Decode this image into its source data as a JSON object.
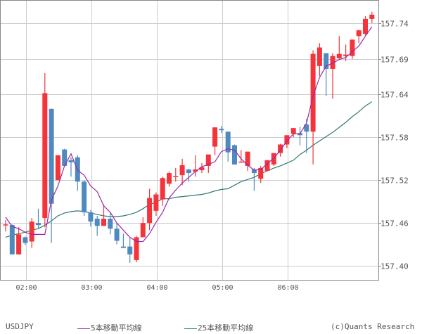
{
  "chart_data": {
    "type": "candlestick",
    "symbol": "USDJPY",
    "interval_minutes": 6,
    "y_ticks": [
      157.74,
      157.69,
      157.64,
      157.58,
      157.52,
      157.46,
      157.4
    ],
    "x_ticks": [
      "02:00",
      "03:00",
      "04:00",
      "05:00",
      "06:00"
    ],
    "ylim": [
      157.38,
      157.77
    ],
    "grid": true,
    "colors": {
      "up": "#f5333a",
      "down": "#4f8abf",
      "ma5": "#9b2aa8",
      "ma25": "#2e7a72",
      "grid": "#cccccc",
      "axis": "#888888"
    },
    "candles": [
      {
        "o": 157.458,
        "h": 157.464,
        "l": 157.448,
        "c": 157.458
      },
      {
        "o": 157.457,
        "h": 157.458,
        "l": 157.417,
        "c": 157.416
      },
      {
        "o": 157.416,
        "h": 157.454,
        "l": 157.416,
        "c": 157.444
      },
      {
        "o": 157.44,
        "h": 157.441,
        "l": 157.429,
        "c": 157.432
      },
      {
        "o": 157.434,
        "h": 157.467,
        "l": 157.425,
        "c": 157.462
      },
      {
        "o": 157.46,
        "h": 157.48,
        "l": 157.453,
        "c": 157.457
      },
      {
        "o": 157.467,
        "h": 157.67,
        "l": 157.454,
        "c": 157.642
      },
      {
        "o": 157.62,
        "h": 157.578,
        "l": 157.432,
        "c": 157.487
      },
      {
        "o": 157.52,
        "h": 157.554,
        "l": 157.52,
        "c": 157.555
      },
      {
        "o": 157.563,
        "h": 157.564,
        "l": 157.54,
        "c": 157.54
      },
      {
        "o": 157.548,
        "h": 157.552,
        "l": 157.525,
        "c": 157.545
      },
      {
        "o": 157.552,
        "h": 157.555,
        "l": 157.505,
        "c": 157.518
      },
      {
        "o": 157.518,
        "h": 157.52,
        "l": 157.47,
        "c": 157.475
      },
      {
        "o": 157.475,
        "h": 157.478,
        "l": 157.455,
        "c": 157.462
      },
      {
        "o": 157.466,
        "h": 157.47,
        "l": 157.442,
        "c": 157.456
      },
      {
        "o": 157.456,
        "h": 157.486,
        "l": 157.456,
        "c": 157.466
      },
      {
        "o": 157.466,
        "h": 157.474,
        "l": 157.444,
        "c": 157.452
      },
      {
        "o": 157.452,
        "h": 157.46,
        "l": 157.43,
        "c": 157.435
      },
      {
        "o": 157.427,
        "h": 157.445,
        "l": 157.425,
        "c": 157.425
      },
      {
        "o": 157.427,
        "h": 157.439,
        "l": 157.404,
        "c": 157.416
      },
      {
        "o": 157.408,
        "h": 157.442,
        "l": 157.405,
        "c": 157.44
      },
      {
        "o": 157.44,
        "h": 157.468,
        "l": 157.44,
        "c": 157.46
      },
      {
        "o": 157.46,
        "h": 157.508,
        "l": 157.45,
        "c": 157.495
      },
      {
        "o": 157.477,
        "h": 157.503,
        "l": 157.47,
        "c": 157.5
      },
      {
        "o": 157.493,
        "h": 157.525,
        "l": 157.484,
        "c": 157.523
      },
      {
        "o": 157.515,
        "h": 157.532,
        "l": 157.511,
        "c": 157.53
      },
      {
        "o": 157.525,
        "h": 157.537,
        "l": 157.518,
        "c": 157.526
      },
      {
        "o": 157.527,
        "h": 157.55,
        "l": 157.513,
        "c": 157.541
      },
      {
        "o": 157.535,
        "h": 157.536,
        "l": 157.518,
        "c": 157.53
      },
      {
        "o": 157.532,
        "h": 157.555,
        "l": 157.525,
        "c": 157.535
      },
      {
        "o": 157.534,
        "h": 157.544,
        "l": 157.53,
        "c": 157.538
      },
      {
        "o": 157.54,
        "h": 157.55,
        "l": 157.53,
        "c": 157.556
      },
      {
        "o": 157.567,
        "h": 157.588,
        "l": 157.555,
        "c": 157.594
      },
      {
        "o": 157.592,
        "h": 157.596,
        "l": 157.586,
        "c": 157.59
      },
      {
        "o": 157.588,
        "h": 157.586,
        "l": 157.546,
        "c": 157.559
      },
      {
        "o": 157.569,
        "h": 157.57,
        "l": 157.545,
        "c": 157.542
      },
      {
        "o": 157.545,
        "h": 157.562,
        "l": 157.545,
        "c": 157.546
      },
      {
        "o": 157.54,
        "h": 157.556,
        "l": 157.533,
        "c": 157.56
      },
      {
        "o": 157.535,
        "h": 157.537,
        "l": 157.505,
        "c": 157.53
      },
      {
        "o": 157.522,
        "h": 157.54,
        "l": 157.516,
        "c": 157.537
      },
      {
        "o": 157.533,
        "h": 157.548,
        "l": 157.533,
        "c": 157.548
      },
      {
        "o": 157.542,
        "h": 157.555,
        "l": 157.54,
        "c": 157.558
      },
      {
        "o": 157.558,
        "h": 157.571,
        "l": 157.553,
        "c": 157.57
      },
      {
        "o": 157.57,
        "h": 157.583,
        "l": 157.565,
        "c": 157.583
      },
      {
        "o": 157.585,
        "h": 157.593,
        "l": 157.58,
        "c": 157.593
      },
      {
        "o": 157.586,
        "h": 157.595,
        "l": 157.569,
        "c": 157.583
      },
      {
        "o": 157.598,
        "h": 157.606,
        "l": 157.558,
        "c": 157.588
      },
      {
        "o": 157.588,
        "h": 157.702,
        "l": 157.542,
        "c": 157.697
      },
      {
        "o": 157.68,
        "h": 157.712,
        "l": 157.666,
        "c": 157.706
      },
      {
        "o": 157.698,
        "h": 157.698,
        "l": 157.638,
        "c": 157.676
      },
      {
        "o": 157.676,
        "h": 157.698,
        "l": 157.634,
        "c": 157.694
      },
      {
        "o": 157.691,
        "h": 157.722,
        "l": 157.69,
        "c": 157.697
      },
      {
        "o": 157.694,
        "h": 157.71,
        "l": 157.687,
        "c": 157.696
      },
      {
        "o": 157.694,
        "h": 157.715,
        "l": 157.69,
        "c": 157.717
      },
      {
        "o": 157.722,
        "h": 157.731,
        "l": 157.712,
        "c": 157.73
      },
      {
        "o": 157.725,
        "h": 157.75,
        "l": 157.723,
        "c": 157.746
      },
      {
        "o": 157.746,
        "h": 157.756,
        "l": 157.74,
        "c": 157.752
      }
    ],
    "ma5": [
      157.468,
      157.455,
      157.452,
      157.447,
      157.444,
      157.444,
      157.444,
      157.492,
      157.512,
      157.54,
      157.557,
      157.534,
      157.527,
      157.512,
      157.504,
      157.484,
      157.475,
      157.46,
      157.45,
      157.44,
      157.434,
      157.434,
      157.445,
      157.461,
      157.475,
      157.495,
      157.506,
      157.516,
      157.524,
      157.532,
      157.539,
      157.542,
      157.546,
      157.56,
      157.564,
      157.562,
      157.55,
      157.541,
      157.534,
      157.535,
      157.543,
      157.551,
      157.562,
      157.575,
      157.585,
      157.585,
      157.6,
      157.638,
      157.664,
      157.68,
      157.684,
      157.689,
      157.692,
      157.7,
      157.708,
      157.722,
      157.735
    ],
    "ma25": [
      157.44,
      157.443,
      157.445,
      157.447,
      157.45,
      157.452,
      157.457,
      157.463,
      157.47,
      157.474,
      157.476,
      157.477,
      157.476,
      157.474,
      157.472,
      157.47,
      157.469,
      157.469,
      157.47,
      157.472,
      157.475,
      157.48,
      157.486,
      157.489,
      157.494,
      157.494,
      157.496,
      157.497,
      157.498,
      157.499,
      157.5,
      157.502,
      157.505,
      157.507,
      157.508,
      157.513,
      157.518,
      157.521,
      157.524,
      157.529,
      157.533,
      157.537,
      157.54,
      157.544,
      157.548,
      157.556,
      157.562,
      157.569,
      157.575,
      157.581,
      157.587,
      157.594,
      157.601,
      157.609,
      157.616,
      157.624,
      157.63
    ],
    "legend": [
      {
        "label": "5本移動平均線",
        "color": "#9b2aa8"
      },
      {
        "label": "25本移動平均線",
        "color": "#2e7a72"
      }
    ],
    "xlabel": "",
    "ylabel": ""
  },
  "footer": {
    "symbol": "USDJPY",
    "ma5_label": "5本移動平均線",
    "ma25_label": "25本移動平均線",
    "credit": "(c)Quants Research"
  }
}
